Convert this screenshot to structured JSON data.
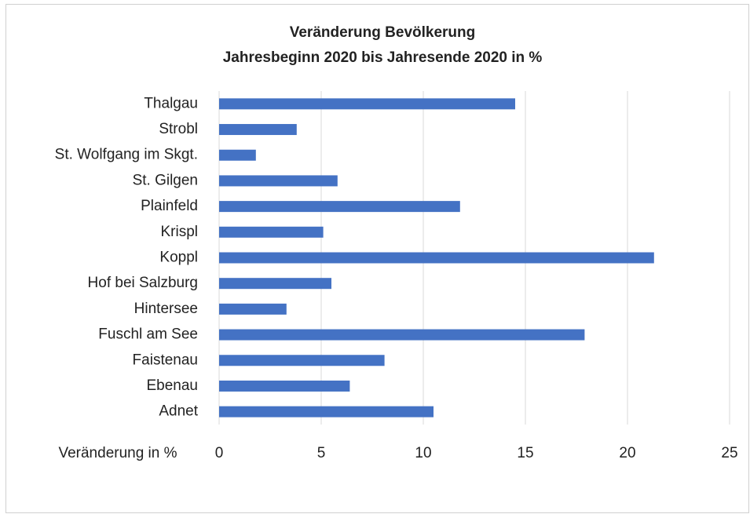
{
  "chart_data": {
    "type": "barh",
    "title": "Veränderung Bevölkerung",
    "subtitle": "Jahresbeginn 2020 bis Jahresende 2020 in %",
    "x_label": "Veränderung in %",
    "categories": [
      "Thalgau",
      "Strobl",
      "St. Wolfgang im Skgt.",
      "St. Gilgen",
      "Plainfeld",
      "Krispl",
      "Koppl",
      "Hof bei Salzburg",
      "Hintersee",
      "Fuschl am See",
      "Faistenau",
      "Ebenau",
      "Adnet"
    ],
    "values": [
      14.5,
      3.8,
      1.8,
      5.8,
      11.8,
      5.1,
      21.3,
      5.5,
      3.3,
      17.9,
      8.1,
      6.4,
      10.5
    ],
    "color": "#4472c4",
    "xlim": [
      0,
      25
    ],
    "xticks": [
      0,
      5,
      10,
      15,
      20,
      25
    ],
    "grid": true
  }
}
